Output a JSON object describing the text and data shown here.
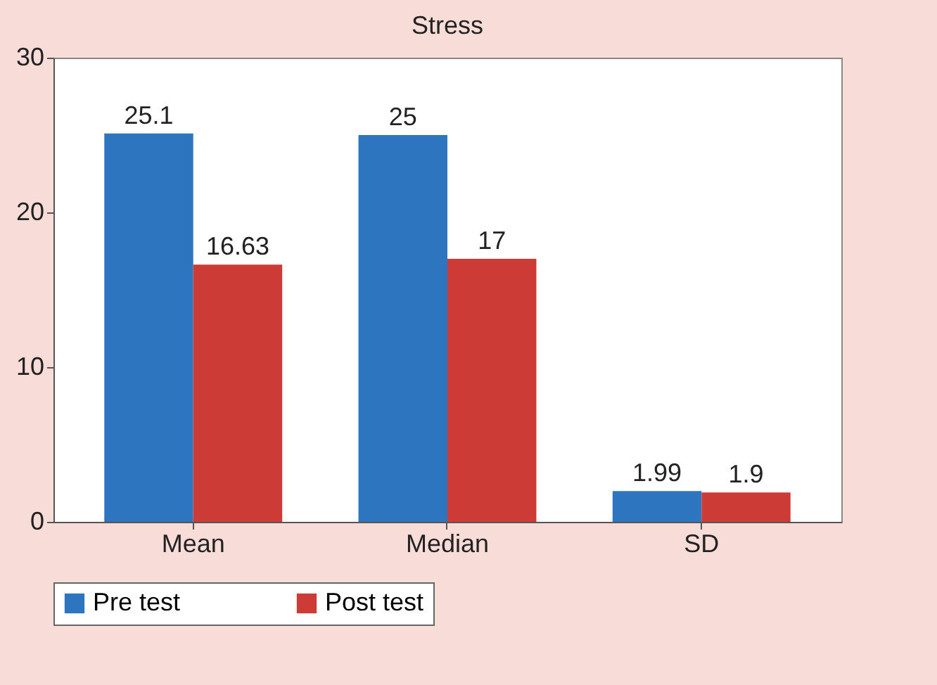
{
  "chart_data": {
    "type": "bar",
    "title": "Stress",
    "categories": [
      "Mean",
      "Median",
      "SD"
    ],
    "series": [
      {
        "name": "Pre test",
        "color": "#2e75c0",
        "values": [
          25.1,
          25,
          1.99
        ]
      },
      {
        "name": "Post test",
        "color": "#cc3b36",
        "values": [
          16.63,
          17,
          1.9
        ]
      }
    ],
    "ylim": [
      0,
      30
    ],
    "yticks": [
      0,
      10,
      20,
      30
    ],
    "data_labels": true,
    "legend": "bottom",
    "grid": false
  }
}
